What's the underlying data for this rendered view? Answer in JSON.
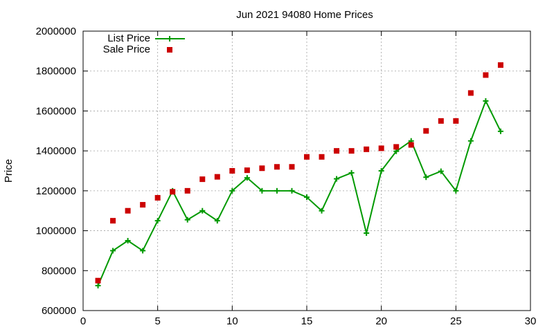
{
  "chart_data": {
    "type": "line",
    "title": "Jun 2021 94080 Home Prices",
    "xlabel": "",
    "ylabel": "Price",
    "xlim": [
      0,
      30
    ],
    "ylim": [
      600000,
      2000000
    ],
    "xticks": [
      "0",
      "5",
      "10",
      "15",
      "20",
      "25",
      "30"
    ],
    "yticks": [
      "600000",
      "800000",
      "1000000",
      "1200000",
      "1400000",
      "1600000",
      "1800000",
      "2000000"
    ],
    "grid": true,
    "legend_position": "top-left",
    "series": [
      {
        "name": "List Price",
        "style": "lines+points",
        "marker": "plus",
        "color": "#009900",
        "x": [
          1,
          2,
          3,
          4,
          5,
          6,
          7,
          8,
          9,
          10,
          11,
          12,
          13,
          14,
          15,
          16,
          17,
          18,
          19,
          20,
          21,
          22,
          23,
          24,
          25,
          26,
          27,
          28
        ],
        "values": [
          725000,
          900000,
          950000,
          900000,
          1050000,
          1200000,
          1055000,
          1100000,
          1050000,
          1200000,
          1265000,
          1200000,
          1200000,
          1200000,
          1168000,
          1100000,
          1260000,
          1290000,
          988000,
          1300000,
          1398000,
          1450000,
          1268000,
          1298000,
          1200000,
          1450000,
          1650000,
          1498000
        ]
      },
      {
        "name": "Sale Price",
        "style": "points",
        "marker": "square",
        "color": "#cc0000",
        "x": [
          1,
          2,
          3,
          4,
          5,
          6,
          7,
          8,
          9,
          10,
          11,
          12,
          13,
          14,
          15,
          16,
          17,
          18,
          19,
          20,
          21,
          22,
          23,
          24,
          25,
          26,
          27,
          28
        ],
        "values": [
          750000,
          1050000,
          1100000,
          1130000,
          1165000,
          1195000,
          1200000,
          1258000,
          1270000,
          1300000,
          1303000,
          1313000,
          1320000,
          1320000,
          1370000,
          1370000,
          1400000,
          1400000,
          1408000,
          1413000,
          1420000,
          1430000,
          1500000,
          1550000,
          1550000,
          1690000,
          1780000,
          1830000
        ]
      }
    ]
  }
}
